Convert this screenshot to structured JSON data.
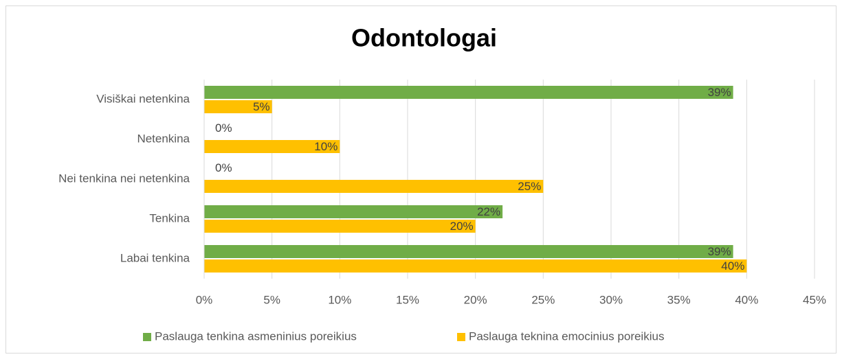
{
  "chart_data": {
    "type": "bar",
    "orientation": "horizontal",
    "title": "Odontologai",
    "categories": [
      "Visiškai netenkina",
      "Netenkina",
      "Nei tenkina nei netenkina",
      "Tenkina",
      "Labai tenkina"
    ],
    "series": [
      {
        "name": "Paslauga tenkina asmeninius poreikius",
        "color": "#70ad47",
        "values": [
          39,
          0,
          0,
          22,
          39
        ],
        "value_labels": [
          "39%",
          "0%",
          "0%",
          "22%",
          "39%"
        ]
      },
      {
        "name": "Paslauga teknina emocinius poreikius",
        "color": "#ffc000",
        "values": [
          5,
          10,
          25,
          20,
          40
        ],
        "value_labels": [
          "5%",
          "10%",
          "25%",
          "20%",
          "40%"
        ]
      }
    ],
    "xlim": [
      0,
      45
    ],
    "xticks": [
      {
        "value": 0,
        "label": "0%"
      },
      {
        "value": 5,
        "label": "5%"
      },
      {
        "value": 10,
        "label": "10%"
      },
      {
        "value": 15,
        "label": "15%"
      },
      {
        "value": 20,
        "label": "20%"
      },
      {
        "value": 25,
        "label": "25%"
      },
      {
        "value": 30,
        "label": "30%"
      },
      {
        "value": 35,
        "label": "35%"
      },
      {
        "value": 40,
        "label": "40%"
      },
      {
        "value": 45,
        "label": "45%"
      }
    ],
    "grid": true,
    "legend": "bottom"
  }
}
